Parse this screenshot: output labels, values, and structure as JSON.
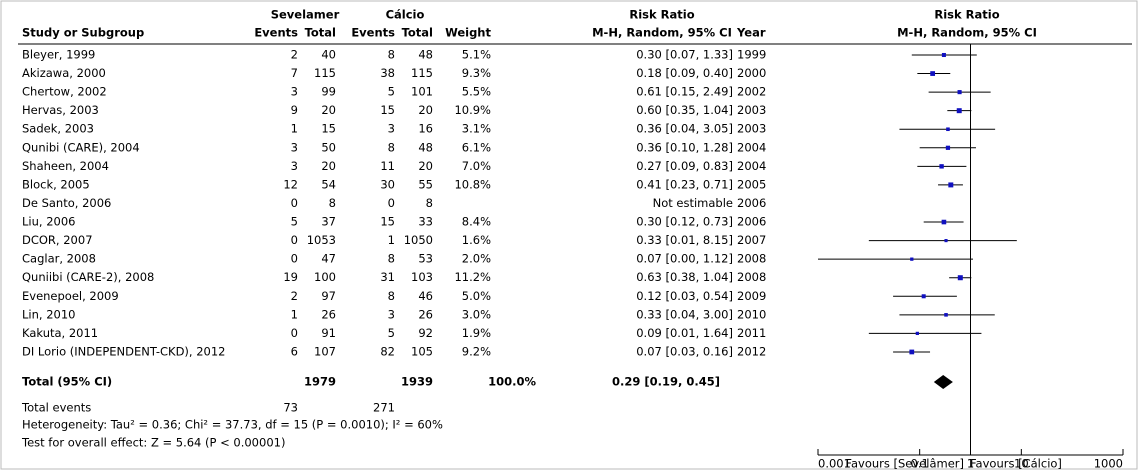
{
  "chart_data": {
    "type": "forest",
    "headers": {
      "group1": "Sevelamer",
      "group2": "Cálcio",
      "effect": "Risk Ratio",
      "method": "M-H, Random, 95% CI",
      "study": "Study or Subgroup",
      "events": "Events",
      "total": "Total",
      "weight": "Weight",
      "year": "Year"
    },
    "studies": [
      "Bleyer, 1999",
      "Akizawa, 2000",
      "Chertow, 2002",
      "Hervas, 2003",
      "Sadek, 2003",
      "Qunibi (CARE), 2004",
      "Shaheen, 2004",
      "Block, 2005",
      "De Santo, 2006",
      "Liu, 2006",
      "DCOR, 2007",
      "Caglar, 2008",
      "Quniibi (CARE-2), 2008",
      "Evenepoel, 2009",
      "Lin, 2010",
      "Kakuta, 2011",
      "DI Lorio (INDEPENDENT-CKD), 2012"
    ],
    "sev_events": [
      2,
      7,
      3,
      9,
      1,
      3,
      3,
      12,
      0,
      5,
      0,
      0,
      19,
      2,
      1,
      0,
      6
    ],
    "sev_totals": [
      40,
      115,
      99,
      20,
      15,
      50,
      20,
      54,
      8,
      37,
      1053,
      47,
      100,
      97,
      26,
      91,
      107
    ],
    "calc_events": [
      8,
      38,
      5,
      15,
      3,
      8,
      11,
      30,
      0,
      15,
      1,
      8,
      31,
      8,
      3,
      5,
      82
    ],
    "calc_totals": [
      48,
      115,
      101,
      20,
      16,
      48,
      20,
      55,
      8,
      33,
      1050,
      53,
      103,
      46,
      26,
      92,
      105
    ],
    "weights": [
      5.1,
      9.3,
      5.5,
      10.9,
      3.1,
      6.1,
      7.0,
      10.8,
      null,
      8.4,
      1.6,
      2.0,
      11.2,
      5.0,
      3.0,
      1.9,
      9.2
    ],
    "weight_labels": [
      "5.1%",
      "9.3%",
      "5.5%",
      "10.9%",
      "3.1%",
      "6.1%",
      "7.0%",
      "10.8%",
      null,
      "8.4%",
      "1.6%",
      "2.0%",
      "11.2%",
      "5.0%",
      "3.0%",
      "1.9%",
      "9.2%"
    ],
    "values": [
      0.3,
      0.18,
      0.61,
      0.6,
      0.36,
      0.36,
      0.27,
      0.41,
      null,
      0.3,
      0.33,
      0.07,
      0.63,
      0.12,
      0.33,
      0.09,
      0.07
    ],
    "lower": [
      0.07,
      0.09,
      0.15,
      0.35,
      0.04,
      0.1,
      0.09,
      0.23,
      null,
      0.12,
      0.01,
      0.0,
      0.38,
      0.03,
      0.04,
      0.01,
      0.03
    ],
    "upper": [
      1.33,
      0.4,
      2.49,
      1.04,
      3.05,
      1.28,
      0.83,
      0.71,
      null,
      0.73,
      8.15,
      1.12,
      1.04,
      0.54,
      3.0,
      1.64,
      0.16
    ],
    "value_labels": [
      "0.30 [0.07, 1.33]",
      "0.18 [0.09, 0.40]",
      "0.61 [0.15, 2.49]",
      "0.60 [0.35, 1.04]",
      "0.36 [0.04, 3.05]",
      "0.36 [0.10, 1.28]",
      "0.27 [0.09, 0.83]",
      "0.41 [0.23, 0.71]",
      "Not estimable",
      "0.30 [0.12, 0.73]",
      "0.33 [0.01, 8.15]",
      "0.07 [0.00, 1.12]",
      "0.63 [0.38, 1.04]",
      "0.12 [0.03, 0.54]",
      "0.33 [0.04, 3.00]",
      "0.09 [0.01, 1.64]",
      "0.07 [0.03, 0.16]"
    ],
    "years": [
      1999,
      2000,
      2002,
      2003,
      2003,
      2004,
      2004,
      2005,
      2006,
      2006,
      2007,
      2008,
      2008,
      2009,
      2010,
      2011,
      2012
    ],
    "total": {
      "label": "Total (95% CI)",
      "sev_total": 1979,
      "calc_total": 1939,
      "weight_label": "100.0%",
      "value": 0.29,
      "lower": 0.19,
      "upper": 0.45,
      "value_label": "0.29 [0.19, 0.45]"
    },
    "total_events": {
      "label": "Total events",
      "sev": 73,
      "calc": 271
    },
    "heterogeneity": "Heterogeneity: Tau² = 0.36; Chi² = 37.73, df = 15 (P = 0.0010); I² = 60%",
    "overall_test": "Test for overall effect: Z = 5.64 (P < 0.00001)",
    "xscale": "log",
    "xlim": [
      0.001,
      1000
    ],
    "xticks": [
      0.001,
      0.1,
      1,
      10,
      1000
    ],
    "xlabels": [
      "Favours [Sevelâmer]",
      "Favours [Cálcio]"
    ],
    "marker_color": "#1010c0"
  }
}
